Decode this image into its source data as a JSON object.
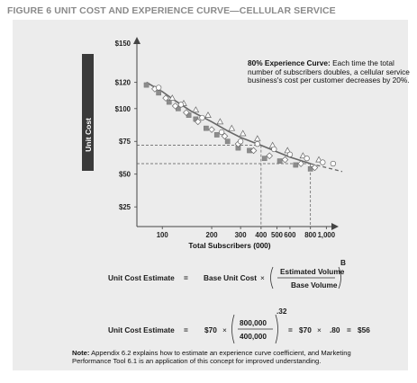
{
  "figure_title": "FIGURE 6 UNIT COST AND EXPERIENCE CURVE—CELLULAR SERVICE",
  "annotation": {
    "heading": "80% Experience Curve:",
    "body": "Each time the total number of subscribers doubles, a cellular service business's cost per customer decreases by 20%."
  },
  "chart_data": {
    "type": "scatter",
    "xlabel": "Total Subscribers (000)",
    "ylabel": "Unit Cost",
    "x_ticks": [
      100,
      200,
      300,
      400,
      500,
      600,
      800,
      1000
    ],
    "x_tick_labels": [
      "100",
      "200",
      "300",
      "400",
      "500",
      "600",
      "800",
      "1,000"
    ],
    "y_ticks": [
      25,
      50,
      75,
      100,
      120,
      150
    ],
    "y_tick_labels": [
      "$25",
      "$50",
      "$75",
      "$100",
      "$120",
      "$150"
    ],
    "x_scale": "log",
    "xlim": [
      70,
      1250
    ],
    "ylim": [
      10,
      152
    ],
    "series": [
      {
        "marker": "square",
        "points": [
          [
            80,
            118
          ],
          [
            95,
            112
          ],
          [
            110,
            105
          ],
          [
            125,
            100
          ],
          [
            145,
            95
          ],
          [
            160,
            92
          ],
          [
            185,
            85
          ],
          [
            215,
            80
          ],
          [
            250,
            75
          ],
          [
            290,
            70
          ],
          [
            340,
            68
          ],
          [
            420,
            62
          ],
          [
            520,
            60
          ],
          [
            650,
            57
          ],
          [
            800,
            54
          ]
        ]
      },
      {
        "marker": "diamond",
        "points": [
          [
            90,
            115
          ],
          [
            105,
            108
          ],
          [
            120,
            102
          ],
          [
            140,
            97
          ],
          [
            165,
            90
          ],
          [
            200,
            84
          ],
          [
            240,
            79
          ],
          [
            290,
            73
          ],
          [
            360,
            68
          ],
          [
            450,
            64
          ],
          [
            560,
            61
          ],
          [
            700,
            58
          ],
          [
            850,
            55
          ]
        ]
      },
      {
        "marker": "triangle",
        "points": [
          [
            115,
            108
          ],
          [
            135,
            104
          ],
          [
            160,
            99
          ],
          [
            190,
            95
          ],
          [
            225,
            90
          ],
          [
            265,
            85
          ],
          [
            310,
            81
          ],
          [
            380,
            77
          ],
          [
            470,
            72
          ],
          [
            580,
            68
          ],
          [
            720,
            64
          ],
          [
            900,
            61
          ]
        ]
      },
      {
        "marker": "circle",
        "points": [
          [
            95,
            116
          ],
          [
            130,
            103
          ],
          [
            175,
            93
          ],
          [
            230,
            82
          ],
          [
            300,
            75
          ],
          [
            380,
            73
          ],
          [
            480,
            69
          ],
          [
            600,
            65
          ],
          [
            760,
            62
          ],
          [
            950,
            59
          ],
          [
            1100,
            58
          ]
        ]
      }
    ],
    "curve": {
      "points": [
        [
          80,
          120
        ],
        [
          100,
          113
        ],
        [
          120,
          106
        ],
        [
          150,
          98
        ],
        [
          200,
          90
        ],
        [
          250,
          83
        ],
        [
          300,
          78
        ],
        [
          400,
          72
        ],
        [
          500,
          67
        ],
        [
          600,
          63
        ],
        [
          800,
          58
        ],
        [
          1000,
          55
        ],
        [
          1250,
          52
        ]
      ]
    },
    "reference_lines": [
      {
        "x": 400,
        "y": 72
      },
      {
        "x": 800,
        "y": 58
      }
    ]
  },
  "formula1": {
    "lhs": "Unit Cost Estimate",
    "eq": "=",
    "base": "Base Unit Cost",
    "times": "×",
    "numerator": "Estimated Volume",
    "denominator": "Base Volume",
    "exponent": "B"
  },
  "formula2": {
    "lhs": "Unit Cost Estimate",
    "eq": "=",
    "base": "$70",
    "times": "×",
    "numerator": "800,000",
    "denominator": "400,000",
    "exponent": ".32",
    "eq2": "=",
    "base2": "$70",
    "times2": "×",
    "factor": ".80",
    "eq3": "=",
    "result": "$56"
  },
  "note": {
    "label": "Note:",
    "text": "Appendix 6.2 explains how to estimate an experience curve coefficient, and Marketing Performance Tool 6.1 is an application of this concept for improved understanding."
  }
}
